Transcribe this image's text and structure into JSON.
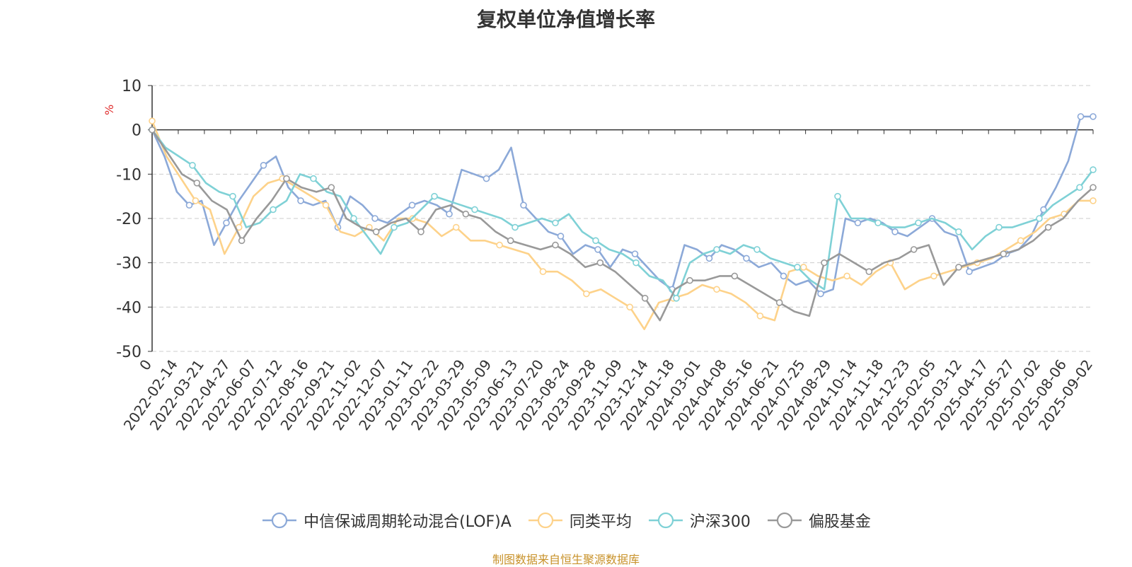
{
  "title": "复权单位净值增长率",
  "source": "制图数据来自恒生聚源数据库",
  "chart_data": {
    "type": "line",
    "ylabel": "%",
    "ylim": [
      -50,
      10
    ],
    "yticks": [
      10,
      0,
      -10,
      -20,
      -30,
      -40,
      -50
    ],
    "x_tick_labels": [
      "0",
      "2022-02-14",
      "2022-03-21",
      "2022-04-27",
      "2022-06-07",
      "2022-07-12",
      "2022-08-16",
      "2022-09-21",
      "2022-11-02",
      "2022-12-07",
      "2023-01-11",
      "2023-02-22",
      "2023-03-29",
      "2023-05-09",
      "2023-06-13",
      "2023-07-20",
      "2023-08-24",
      "2023-09-28",
      "2023-11-09",
      "2023-12-14",
      "2024-01-18",
      "2024-03-01",
      "2024-04-08",
      "2024-05-16",
      "2024-06-21",
      "2024-07-25",
      "2024-08-29",
      "2024-10-14",
      "2024-11-18",
      "2024-12-23",
      "2025-02-05",
      "2025-03-12",
      "2025-04-17",
      "2025-05-27",
      "2025-07-02",
      "2025-08-06",
      "2025-09-02"
    ],
    "grid": true,
    "legend_position": "bottom",
    "series": [
      {
        "name": "中信保诚周期轮动混合(LOF)A",
        "color": "#8ca9d8",
        "values": [
          0,
          -6,
          -14,
          -17,
          -16,
          -26,
          -21,
          -16,
          -12,
          -8,
          -6,
          -13,
          -16,
          -17,
          -16,
          -22,
          -15,
          -17,
          -20,
          -21,
          -19,
          -17,
          -16,
          -17,
          -19,
          -9,
          -10,
          -11,
          -9,
          -4,
          -17,
          -20,
          -23,
          -24,
          -28,
          -26,
          -27,
          -31,
          -27,
          -28,
          -31,
          -34,
          -36,
          -26,
          -27,
          -29,
          -26,
          -27,
          -29,
          -31,
          -30,
          -33,
          -35,
          -34,
          -37,
          -36,
          -20,
          -21,
          -20,
          -21,
          -23,
          -24,
          -22,
          -20,
          -23,
          -24,
          -32,
          -31,
          -30,
          -28,
          -27,
          -24,
          -18,
          -13,
          -7,
          3,
          3
        ]
      },
      {
        "name": "同类平均",
        "color": "#fdd28a",
        "values": [
          2,
          -6,
          -11,
          -16,
          -18,
          -28,
          -22,
          -15,
          -12,
          -11,
          -13,
          -15,
          -17,
          -23,
          -24,
          -22,
          -25,
          -20,
          -20,
          -21,
          -24,
          -22,
          -25,
          -25,
          -26,
          -27,
          -28,
          -32,
          -32,
          -34,
          -37,
          -36,
          -38,
          -40,
          -45,
          -39,
          -38,
          -37,
          -35,
          -36,
          -37,
          -39,
          -42,
          -43,
          -32,
          -31,
          -33,
          -34,
          -33,
          -35,
          -32,
          -30,
          -36,
          -34,
          -33,
          -32,
          -31,
          -30,
          -29,
          -27,
          -25,
          -23,
          -20,
          -19,
          -16,
          -16
        ]
      },
      {
        "name": "沪深300",
        "color": "#7fd1d6",
        "values": [
          0,
          -4,
          -6,
          -8,
          -12,
          -14,
          -15,
          -22,
          -21,
          -18,
          -16,
          -10,
          -11,
          -14,
          -15,
          -20,
          -24,
          -28,
          -22,
          -21,
          -18,
          -15,
          -16,
          -17,
          -18,
          -19,
          -20,
          -22,
          -21,
          -20,
          -21,
          -19,
          -23,
          -25,
          -27,
          -28,
          -30,
          -33,
          -34,
          -38,
          -30,
          -28,
          -27,
          -28,
          -26,
          -27,
          -29,
          -30,
          -31,
          -34,
          -36,
          -15,
          -20,
          -20,
          -21,
          -22,
          -22,
          -21,
          -20,
          -21,
          -23,
          -27,
          -24,
          -22,
          -22,
          -21,
          -20,
          -17,
          -15,
          -13,
          -9
        ]
      },
      {
        "name": "偏股基金",
        "color": "#999999",
        "values": [
          0,
          -5,
          -10,
          -12,
          -16,
          -18,
          -25,
          -20,
          -16,
          -11,
          -13,
          -14,
          -13,
          -20,
          -22,
          -23,
          -21,
          -20,
          -23,
          -18,
          -17,
          -19,
          -20,
          -23,
          -25,
          -26,
          -27,
          -26,
          -28,
          -31,
          -30,
          -32,
          -35,
          -38,
          -43,
          -36,
          -34,
          -34,
          -33,
          -33,
          -35,
          -37,
          -39,
          -41,
          -42,
          -30,
          -28,
          -30,
          -32,
          -30,
          -29,
          -27,
          -26,
          -35,
          -31,
          -30,
          -29,
          -28,
          -27,
          -25,
          -22,
          -20,
          -16,
          -13
        ]
      }
    ]
  }
}
